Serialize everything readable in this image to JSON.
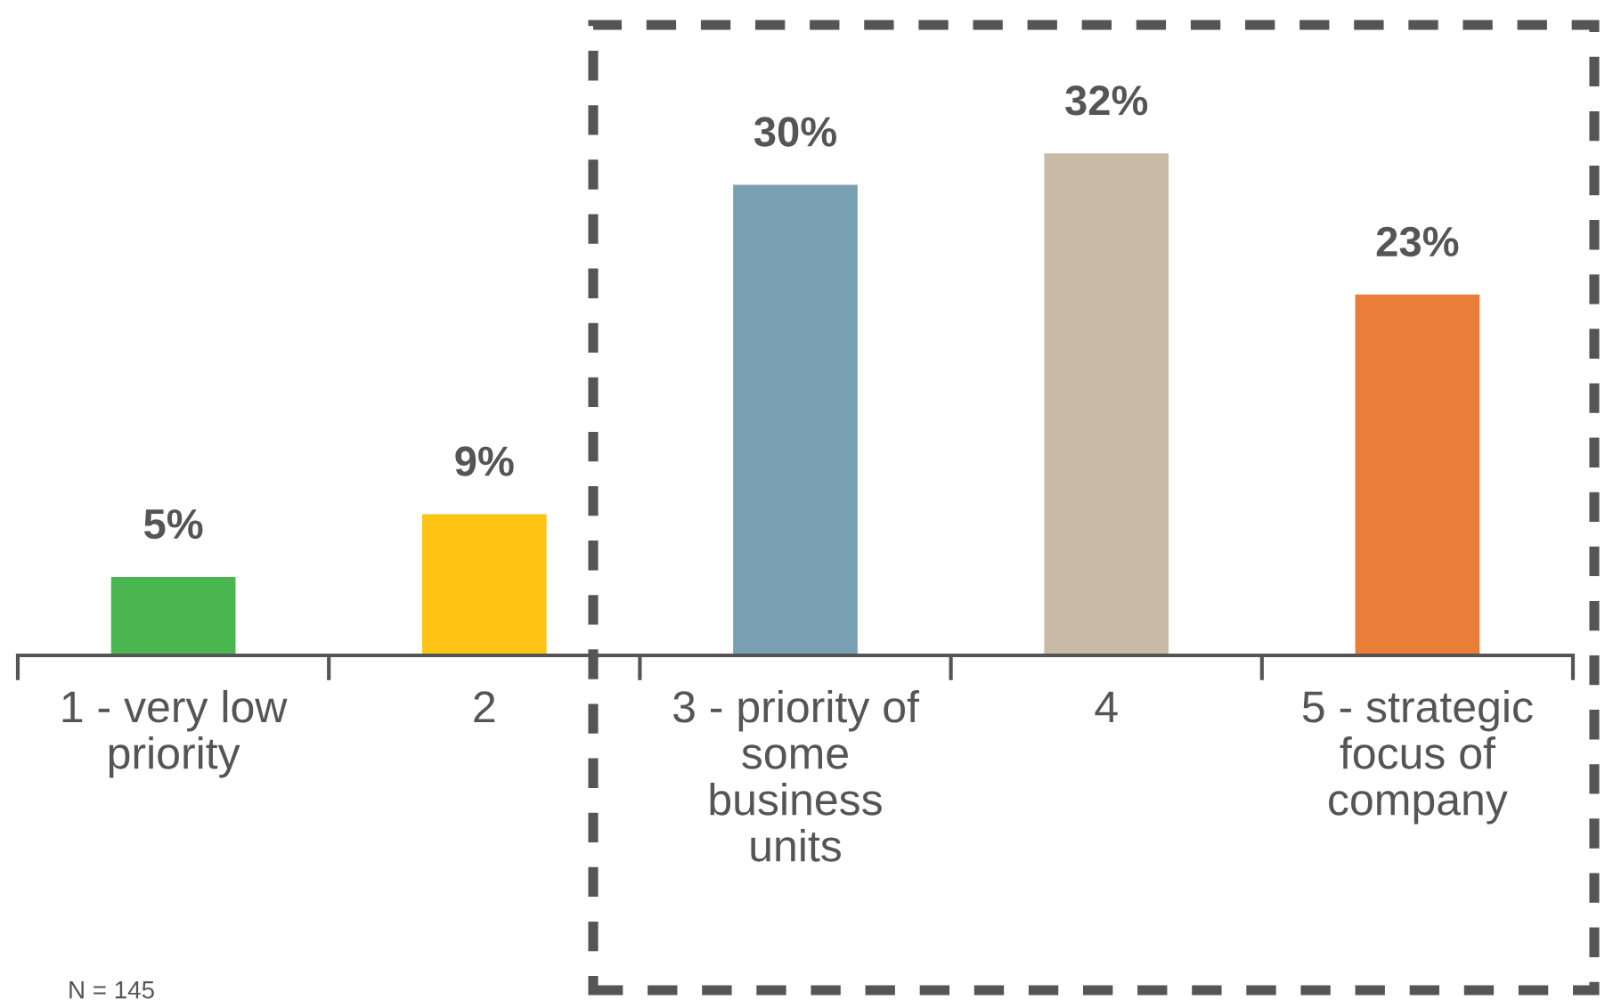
{
  "chart_data": {
    "type": "bar",
    "categories": [
      "1 - very low\npriority",
      "2",
      "3 - priority of\nsome\nbusiness\nunits",
      "4",
      "5 - strategic\nfocus of\ncompany"
    ],
    "values": [
      5,
      9,
      30,
      32,
      23
    ],
    "colors": [
      "#4ab650",
      "#fdc315",
      "#789fb2",
      "#c9baa8",
      "#e97e39"
    ],
    "value_labels": [
      "5%",
      "9%",
      "30%",
      "32%",
      "23%"
    ],
    "annotations": [
      "N = 145"
    ]
  }
}
